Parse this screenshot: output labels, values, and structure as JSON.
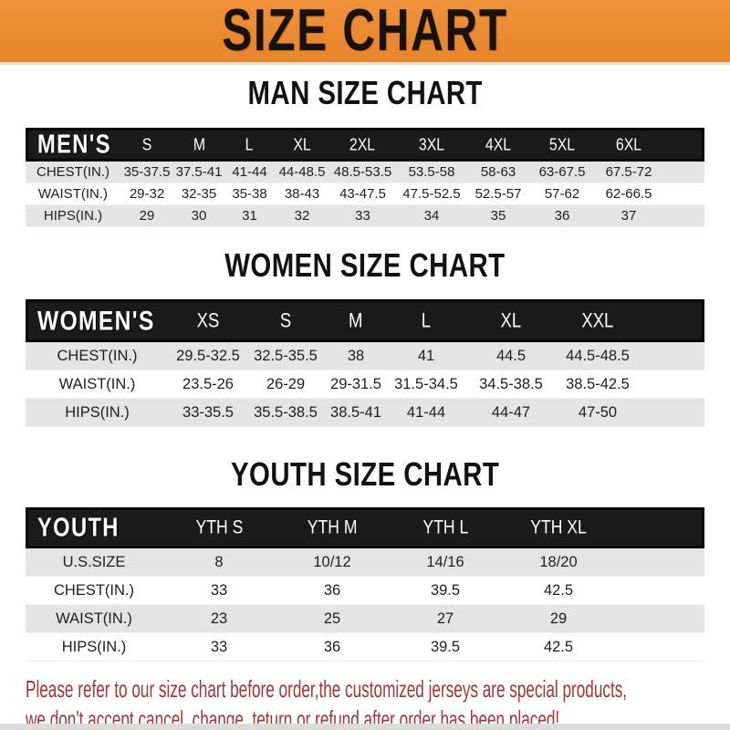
{
  "banner": {
    "title": "SIZE CHART"
  },
  "sections": [
    {
      "heading": "MAN SIZE CHART",
      "table": {
        "header": [
          "MEN'S",
          "S",
          "M",
          "L",
          "XL",
          "2XL",
          "3XL",
          "4XL",
          "5XL",
          "6XL"
        ],
        "rows": [
          [
            "CHEST(IN.)",
            "35-37.5",
            "37.5-41",
            "41-44",
            "44-48.5",
            "48.5-53.5",
            "53.5-58",
            "58-63",
            "63-67.5",
            "67.5-72"
          ],
          [
            "WAIST(IN.)",
            "29-32",
            "32-35",
            "35-38",
            "38-43",
            "43-47.5",
            "47.5-52.5",
            "52.5-57",
            "57-62",
            "62-66.5"
          ],
          [
            "HIPS(IN.)",
            "29",
            "30",
            "31",
            "32",
            "33",
            "34",
            "35",
            "36",
            "37"
          ]
        ]
      }
    },
    {
      "heading": "WOMEN SIZE CHART",
      "table": {
        "header": [
          "WOMEN'S",
          "XS",
          "S",
          "M",
          "L",
          "XL",
          "XXL"
        ],
        "rows": [
          [
            "CHEST(IN.)",
            "29.5-32.5",
            "32.5-35.5",
            "38",
            "41",
            "44.5",
            "44.5-48.5"
          ],
          [
            "WAIST(IN.)",
            "23.5-26",
            "26-29",
            "29-31.5",
            "31.5-34.5",
            "34.5-38.5",
            "38.5-42.5"
          ],
          [
            "HIPS(IN.)",
            "33-35.5",
            "35.5-38.5",
            "38.5-41",
            "41-44",
            "44-47",
            "47-50"
          ]
        ]
      }
    },
    {
      "heading": "YOUTH SIZE CHART",
      "table": {
        "header": [
          "YOUTH",
          "YTH S",
          "YTH M",
          "YTH L",
          "YTH XL"
        ],
        "rows": [
          [
            "U.S.SIZE",
            "8",
            "10/12",
            "14/16",
            "18/20"
          ],
          [
            "CHEST(IN.)",
            "33",
            "36",
            "39.5",
            "42.5"
          ],
          [
            "WAIST(IN.)",
            "23",
            "25",
            "27",
            "29"
          ],
          [
            "HIPS(IN.)",
            "33",
            "36",
            "39.5",
            "42.5"
          ]
        ]
      }
    }
  ],
  "footer": {
    "line1": "Please refer to our size chart before order,the customized jerseys are special products,",
    "line2": "we don't accept cancel, change, teturn or refund after order has been placed!"
  },
  "colors": {
    "banner_orange": "#E9872C",
    "banner_orange_light": "#F0923A",
    "header_bar_black": "#1B1B1B",
    "row_stripe_gray": "#E4E4E4",
    "notice_red": "#A5372D"
  }
}
